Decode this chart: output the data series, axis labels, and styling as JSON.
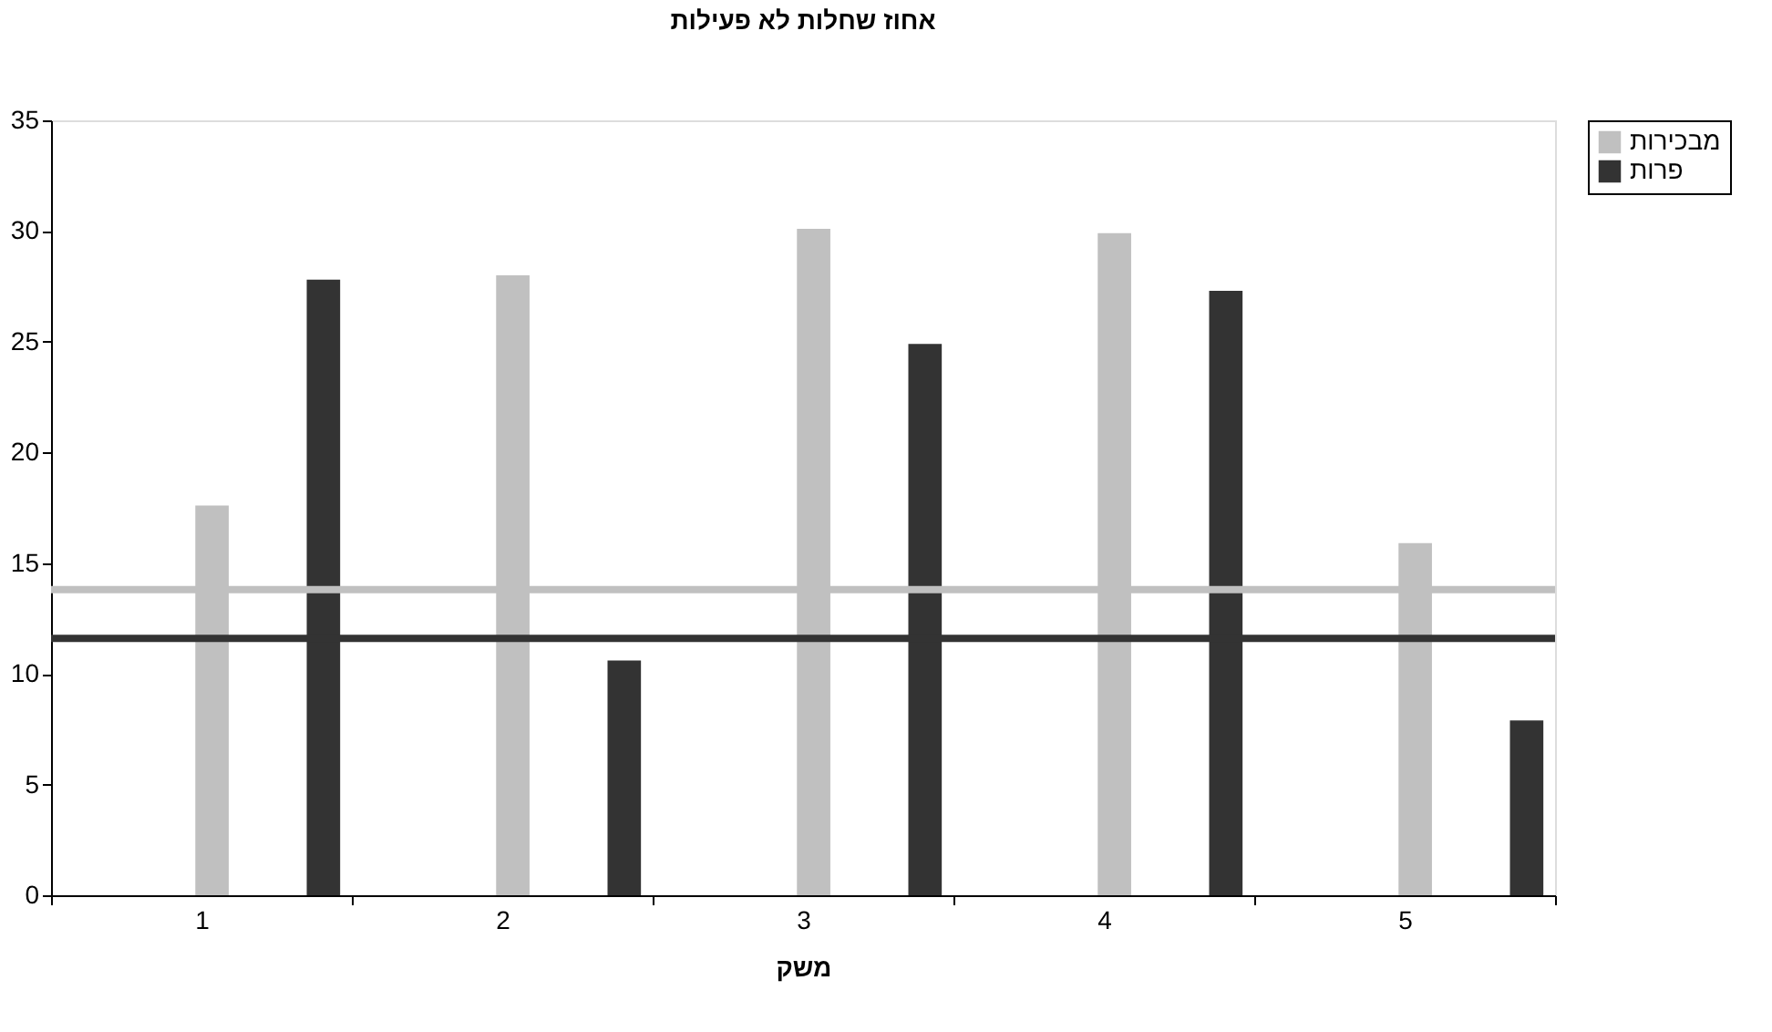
{
  "chart_data": {
    "type": "bar",
    "title": "אחוז שחלות לא פעילות",
    "xlabel": "משק",
    "categories": [
      "1",
      "2",
      "3",
      "4",
      "5"
    ],
    "series": [
      {
        "name": "מבכירות",
        "color": "#c0c0c0",
        "values": [
          17.6,
          28.0,
          30.1,
          29.9,
          15.9
        ]
      },
      {
        "name": "פרות",
        "color": "#333333",
        "values": [
          27.8,
          10.6,
          24.9,
          27.3,
          7.9
        ]
      }
    ],
    "ref_lines": [
      {
        "axis": "y",
        "value": 13.8,
        "color": "#c0c0c0"
      },
      {
        "axis": "y",
        "value": 11.6,
        "color": "#333333"
      }
    ],
    "ylim": [
      0,
      35
    ],
    "yticks": [
      0,
      5,
      10,
      15,
      20,
      25,
      30,
      35
    ],
    "grid": false,
    "legend": "right"
  }
}
